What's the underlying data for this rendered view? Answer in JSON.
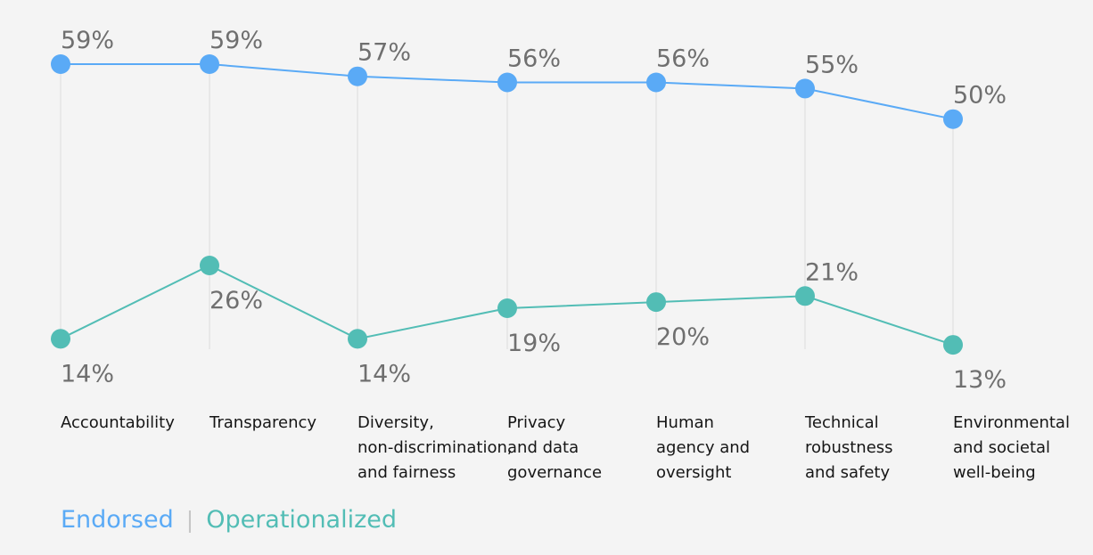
{
  "chart_data": {
    "type": "line",
    "categories": [
      [
        "Accountability"
      ],
      [
        "Transparency"
      ],
      [
        "Diversity,",
        "non-discrimination,",
        "and fairness"
      ],
      [
        "Privacy",
        "and data",
        "governance"
      ],
      [
        "Human",
        "agency and",
        "oversight"
      ],
      [
        "Technical",
        "robustness",
        "and safety"
      ],
      [
        "Environmental",
        "and societal",
        "well-being"
      ]
    ],
    "series": [
      {
        "name": "Endorsed",
        "color": "#5aaaf6",
        "values": [
          59,
          59,
          57,
          56,
          56,
          55,
          50
        ],
        "labels": [
          "59%",
          "59%",
          "57%",
          "56%",
          "56%",
          "55%",
          "50%"
        ],
        "label_positions": [
          "above",
          "above",
          "above",
          "above",
          "above",
          "above",
          "above"
        ]
      },
      {
        "name": "Operationalized",
        "color": "#52bdb5",
        "values": [
          14,
          26,
          14,
          19,
          20,
          21,
          13
        ],
        "labels": [
          "14%",
          "26%",
          "14%",
          "19%",
          "20%",
          "21%",
          "13%"
        ],
        "label_positions": [
          "below",
          "below",
          "below",
          "below",
          "below",
          "above",
          "below"
        ]
      }
    ],
    "legend_separator": "|",
    "grid": "vertical drop lines",
    "legend_position": "bottom-left"
  }
}
